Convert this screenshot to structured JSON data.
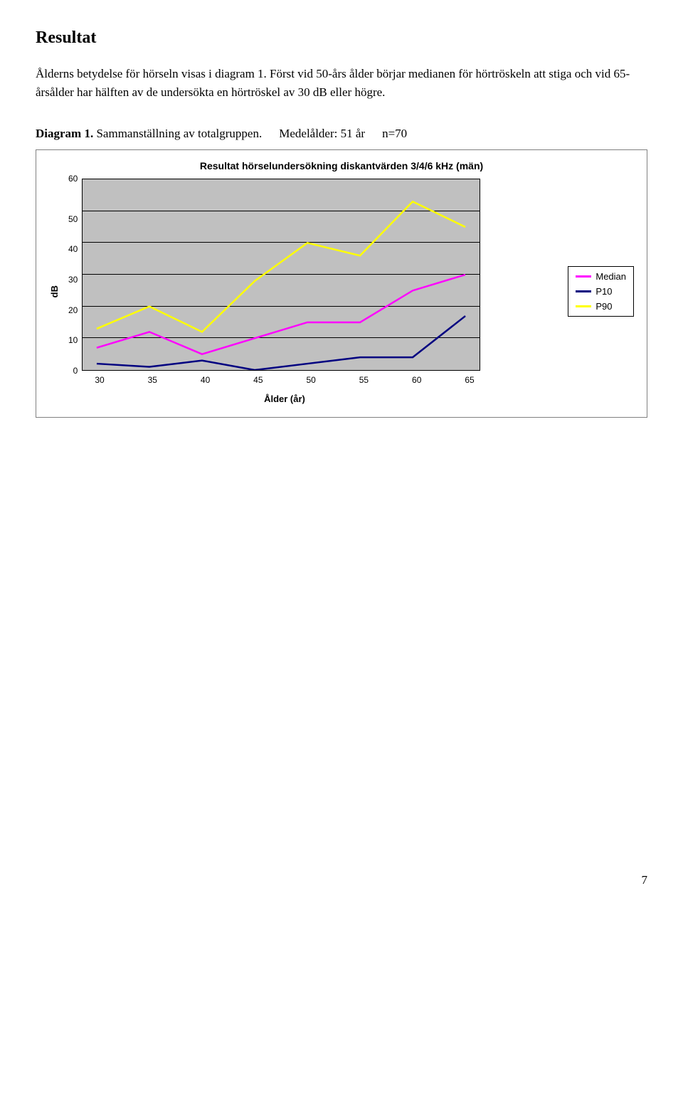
{
  "page": {
    "heading": "Resultat",
    "paragraph": "Ålderns betydelse för hörseln visas i diagram 1. Först vid 50-års ålder börjar medianen för hörtröskeln att stiga och vid 65-årsålder har hälften av de undersökta en hörtröskel av 30 dB eller högre.",
    "caption_label": "Diagram 1.",
    "caption_desc": "Sammanställning av totalgruppen.",
    "caption_age": "Medelålder: 51 år",
    "caption_n": "n=70",
    "page_number": "7"
  },
  "chart": {
    "type": "line",
    "title": "Resultat hörselundersökning diskantvärden 3/4/6 kHz (män)",
    "x_label": "Ålder (år)",
    "y_label": "dB",
    "background_color": "#c0c0c0",
    "gridline_color": "#000000",
    "x_categories": [
      "30",
      "35",
      "40",
      "45",
      "50",
      "55",
      "60",
      "65"
    ],
    "y_min": 0,
    "y_max": 60,
    "y_step": 10,
    "y_ticks": [
      "0",
      "10",
      "20",
      "30",
      "40",
      "50",
      "60"
    ],
    "line_width": 2.5,
    "series": [
      {
        "name": "Median",
        "color": "#ff00ff",
        "values": [
          7,
          12,
          5,
          10,
          15,
          15,
          25,
          30
        ]
      },
      {
        "name": "P10",
        "color": "#000080",
        "values": [
          2,
          1,
          3,
          0,
          2,
          4,
          4,
          17
        ]
      },
      {
        "name": "P90",
        "color": "#ffff00",
        "values": [
          13,
          20,
          12,
          28,
          40,
          36,
          53,
          45
        ]
      }
    ],
    "legend": [
      {
        "label": "Median",
        "color": "#ff00ff"
      },
      {
        "label": "P10",
        "color": "#000080"
      },
      {
        "label": "P90",
        "color": "#ffff00"
      }
    ]
  }
}
